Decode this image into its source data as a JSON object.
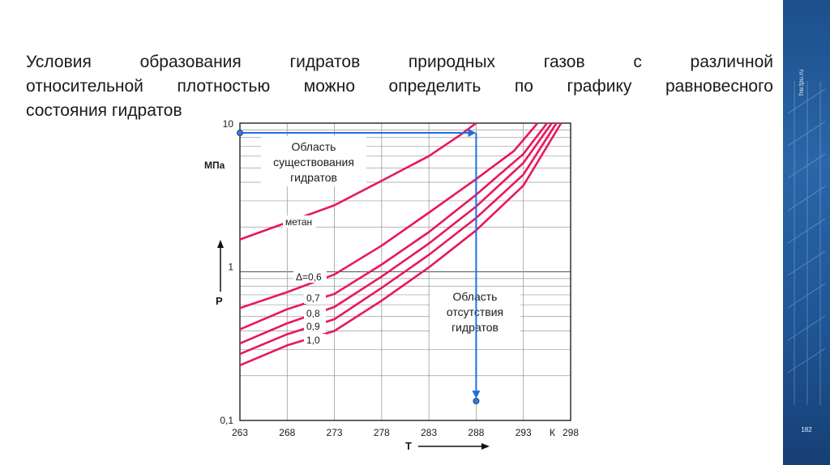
{
  "slide": {
    "text_lines": [
      "Условия образования гидратов природных газов с различной",
      "относительной плотностью можно определить по графику равновесного",
      "состояния гидратов"
    ],
    "site_label": "hw.tpu.ru",
    "page_number": "182"
  },
  "colors": {
    "curve": "#e8175d",
    "arrow": "#1f6fe0",
    "grid": "#9a9a9a",
    "sidebar": "#1f5596"
  },
  "chart_data": {
    "type": "line",
    "title": "",
    "xlabel": "T",
    "x_unit": "К",
    "ylabel": "P",
    "y_unit": "МПа",
    "y_scale": "log",
    "xlim": [
      263,
      298
    ],
    "ylim": [
      0.1,
      10
    ],
    "x_ticks": [
      "263",
      "268",
      "273",
      "278",
      "283",
      "288",
      "293",
      "298"
    ],
    "y_ticks": [
      "0,1",
      "1",
      "10"
    ],
    "grid": true,
    "region_labels": {
      "hydrate_zone": [
        "Область",
        "существования",
        "гидратов"
      ],
      "no_hydrate_zone": [
        "Область",
        "отсутствия",
        "гидратов"
      ]
    },
    "series": [
      {
        "name": "метан",
        "points": [
          [
            263,
            1.65
          ],
          [
            268,
            2.15
          ],
          [
            273,
            2.8
          ],
          [
            278,
            4.1
          ],
          [
            283,
            6.0
          ],
          [
            286.3,
            8.3
          ],
          [
            288,
            10
          ]
        ]
      },
      {
        "name": "Δ=0,6",
        "points": [
          [
            263,
            0.57
          ],
          [
            268,
            0.73
          ],
          [
            273,
            0.96
          ],
          [
            278,
            1.5
          ],
          [
            283,
            2.5
          ],
          [
            288,
            4.2
          ],
          [
            292,
            6.5
          ],
          [
            294.5,
            10
          ]
        ]
      },
      {
        "name": "0,7",
        "points": [
          [
            263,
            0.41
          ],
          [
            268,
            0.56
          ],
          [
            273,
            0.71
          ],
          [
            278,
            1.12
          ],
          [
            283,
            1.85
          ],
          [
            288,
            3.3
          ],
          [
            293,
            6.2
          ],
          [
            295.5,
            10
          ]
        ]
      },
      {
        "name": "0,8",
        "points": [
          [
            263,
            0.33
          ],
          [
            268,
            0.45
          ],
          [
            273,
            0.58
          ],
          [
            278,
            0.93
          ],
          [
            283,
            1.55
          ],
          [
            288,
            2.75
          ],
          [
            293,
            5.4
          ],
          [
            296,
            10
          ]
        ]
      },
      {
        "name": "0,9",
        "points": [
          [
            263,
            0.28
          ],
          [
            268,
            0.38
          ],
          [
            273,
            0.48
          ],
          [
            278,
            0.78
          ],
          [
            283,
            1.3
          ],
          [
            288,
            2.3
          ],
          [
            293,
            4.5
          ],
          [
            296.5,
            10
          ]
        ]
      },
      {
        "name": "1,0",
        "points": [
          [
            263,
            0.235
          ],
          [
            268,
            0.32
          ],
          [
            273,
            0.4
          ],
          [
            278,
            0.64
          ],
          [
            283,
            1.07
          ],
          [
            288,
            1.9
          ],
          [
            293,
            3.8
          ],
          [
            297,
            10
          ]
        ]
      }
    ],
    "annotation_arrow": {
      "from": [
        263,
        8.6
      ],
      "corner": [
        288,
        8.6
      ],
      "to": [
        288,
        0.135
      ]
    }
  }
}
